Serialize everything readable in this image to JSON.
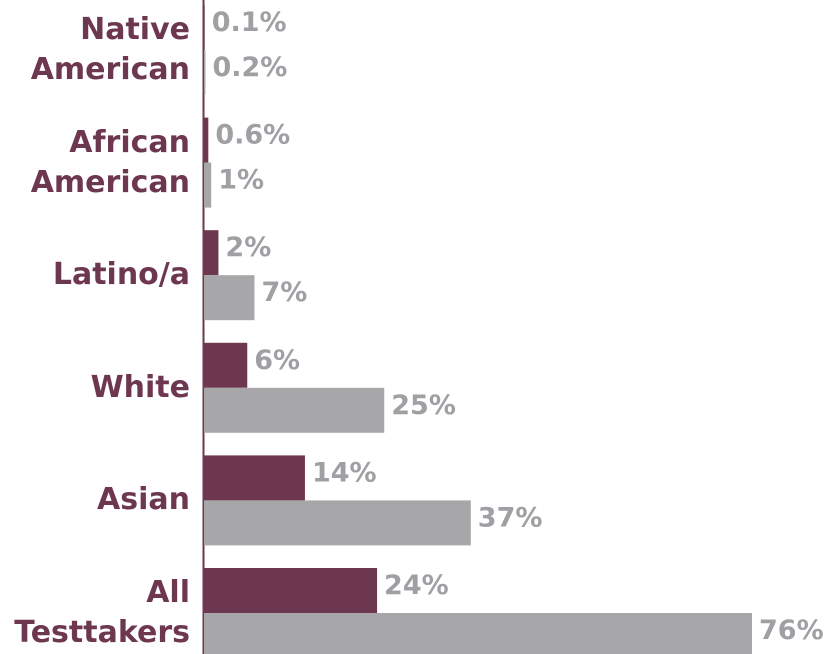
{
  "chart_data": {
    "type": "bar",
    "orientation": "horizontal",
    "categories": [
      "Native American",
      "African American",
      "Latino/a",
      "White",
      "Asian",
      "All Testtakers"
    ],
    "series": [
      {
        "color": "#6e3750",
        "values": [
          0.1,
          0.6,
          2,
          6,
          14,
          24
        ],
        "value_labels": [
          "0.1%",
          "0.6%",
          "2%",
          "6%",
          "14%",
          "24%"
        ]
      },
      {
        "color": "#a7a7aa",
        "values": [
          0.2,
          1,
          7,
          25,
          37,
          76
        ],
        "value_labels": [
          "0.2%",
          "1%",
          "7%",
          "25%",
          "37%",
          "76%"
        ]
      }
    ],
    "xlim": [
      0,
      76
    ]
  }
}
